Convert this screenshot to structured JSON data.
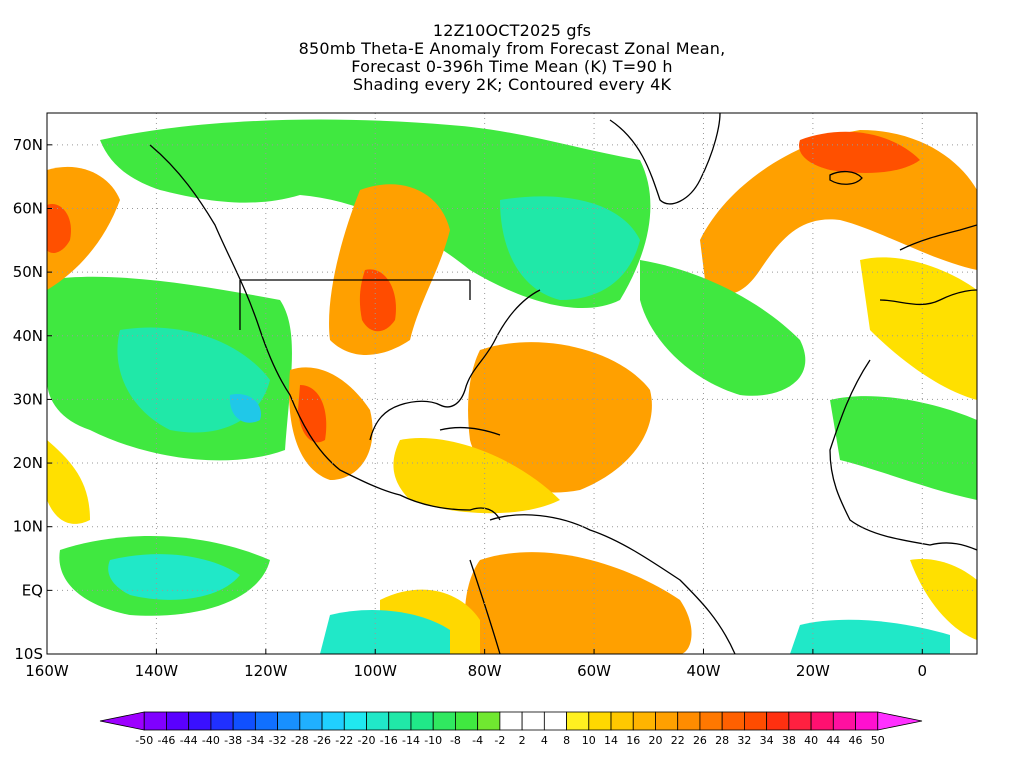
{
  "title": {
    "line1": "12Z10OCT2025 gfs",
    "line2": "850mb Theta-E Anomaly from Forecast Zonal Mean,",
    "line3": "Forecast 0-396h Time Mean (K) T=90 h",
    "line4": "Shading every 2K; Contoured every 4K"
  },
  "map": {
    "lat_range": [
      -10,
      75
    ],
    "lon_range": [
      -160,
      10
    ],
    "lat_ticks": [
      "70N",
      "60N",
      "50N",
      "40N",
      "30N",
      "20N",
      "10N",
      "EQ",
      "10S"
    ],
    "lon_ticks": [
      "160W",
      "140W",
      "120W",
      "100W",
      "80W",
      "60W",
      "40W",
      "20W",
      "0"
    ],
    "grid": "dotted"
  },
  "colorbar": {
    "labels": [
      "-50",
      "-46",
      "-44",
      "-40",
      "-38",
      "-34",
      "-32",
      "-28",
      "-26",
      "-22",
      "-20",
      "-16",
      "-14",
      "-10",
      "-8",
      "-4",
      "-2",
      "2",
      "4",
      "8",
      "10",
      "14",
      "16",
      "20",
      "22",
      "26",
      "28",
      "32",
      "34",
      "38",
      "40",
      "44",
      "46",
      "50"
    ],
    "colors": [
      "#9d00ff",
      "#8000ff",
      "#5a00ff",
      "#3a10ff",
      "#2030ff",
      "#1050ff",
      "#1070ff",
      "#1890ff",
      "#20b0ff",
      "#20d0ff",
      "#20e8f0",
      "#20e8c8",
      "#20e8a8",
      "#20e888",
      "#30e860",
      "#40e840",
      "#70e830",
      "#ffffff",
      "#ffffff",
      "#ffffff",
      "#fff020",
      "#ffd800",
      "#ffc800",
      "#ffb400",
      "#ffa000",
      "#ff8c00",
      "#ff7800",
      "#ff6000",
      "#ff4c00",
      "#ff3010",
      "#ff2040",
      "#ff1070",
      "#ff10a0",
      "#ff10d0",
      "#ff30ff"
    ]
  }
}
